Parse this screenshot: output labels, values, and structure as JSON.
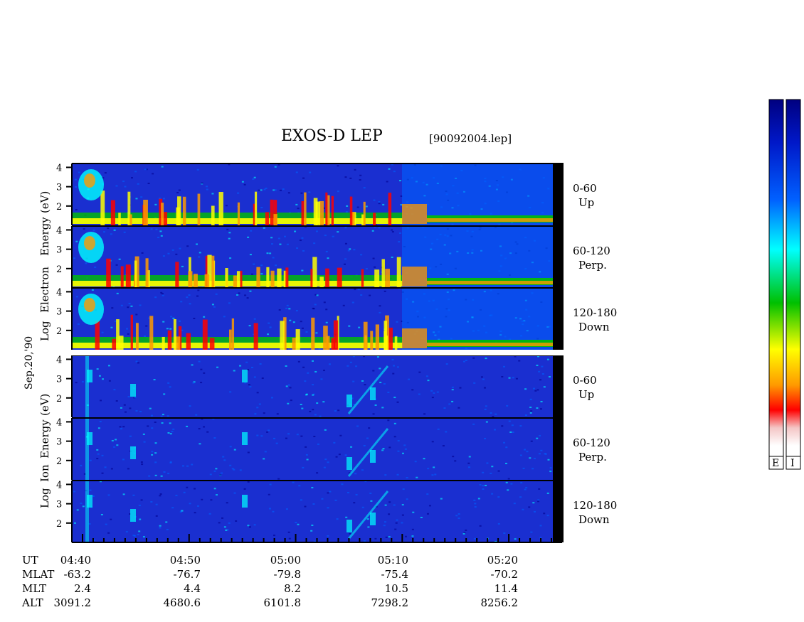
{
  "title": "EXOS-D LEP",
  "file_tag": "[90092004.lep]",
  "date_label": "Sep.20,'90",
  "electron_ylabel": [
    "Log",
    "Electron",
    "Energy",
    "(eV)"
  ],
  "ion_ylabel": [
    "Log",
    "Ion",
    "Energy",
    "(eV)"
  ],
  "ytick_labels": [
    "2",
    "3",
    "4"
  ],
  "panel_labels": [
    {
      "range": "0-60",
      "dir": "Up"
    },
    {
      "range": "60-120",
      "dir": "Perp."
    },
    {
      "range": "120-180",
      "dir": "Down"
    },
    {
      "range": "0-60",
      "dir": "Up"
    },
    {
      "range": "60-120",
      "dir": "Perp."
    },
    {
      "range": "120-180",
      "dir": "Down"
    }
  ],
  "colorbar_labels": [
    "E",
    "I"
  ],
  "colors": {
    "colormap": [
      "#ffffff",
      "#f4c6c6",
      "#ff0000",
      "#ff9a00",
      "#ffff00",
      "#00c000",
      "#00ffff",
      "#0060ff",
      "#000090"
    ],
    "panel_background": "#1a2fd0"
  },
  "axis_rows": {
    "labels": [
      "UT",
      "MLAT",
      "MLT",
      "ALT"
    ],
    "columns": [
      {
        "UT": "04:40",
        "MLAT": "-63.2",
        "MLT": "2.4",
        "ALT": "3091.2"
      },
      {
        "UT": "04:50",
        "MLAT": "-76.7",
        "MLT": "4.4",
        "ALT": "4680.6"
      },
      {
        "UT": "05:00",
        "MLAT": "-79.8",
        "MLT": "8.2",
        "ALT": "6101.8"
      },
      {
        "UT": "05:10",
        "MLAT": "-75.4",
        "MLT": "10.5",
        "ALT": "7298.2"
      },
      {
        "UT": "05:20",
        "MLAT": "-70.2",
        "MLT": "11.4",
        "ALT": "8256.2"
      }
    ]
  },
  "chart_data": {
    "type": "heatmap",
    "x_axis": {
      "label": "UT",
      "range": [
        "04:39",
        "05:25"
      ],
      "major_ticks": [
        "04:40",
        "04:50",
        "05:00",
        "05:10",
        "05:20"
      ]
    },
    "y_axis": {
      "label": "Log Energy (eV)",
      "range": [
        1,
        4.2
      ],
      "ticks": [
        2,
        3,
        4
      ]
    },
    "species": [
      "Electron",
      "Ion"
    ],
    "pitch_angle_bins": [
      "0-60 Up",
      "60-120 Perp.",
      "120-180 Down"
    ],
    "colorbar": {
      "labels": [
        "E",
        "I"
      ]
    }
  }
}
